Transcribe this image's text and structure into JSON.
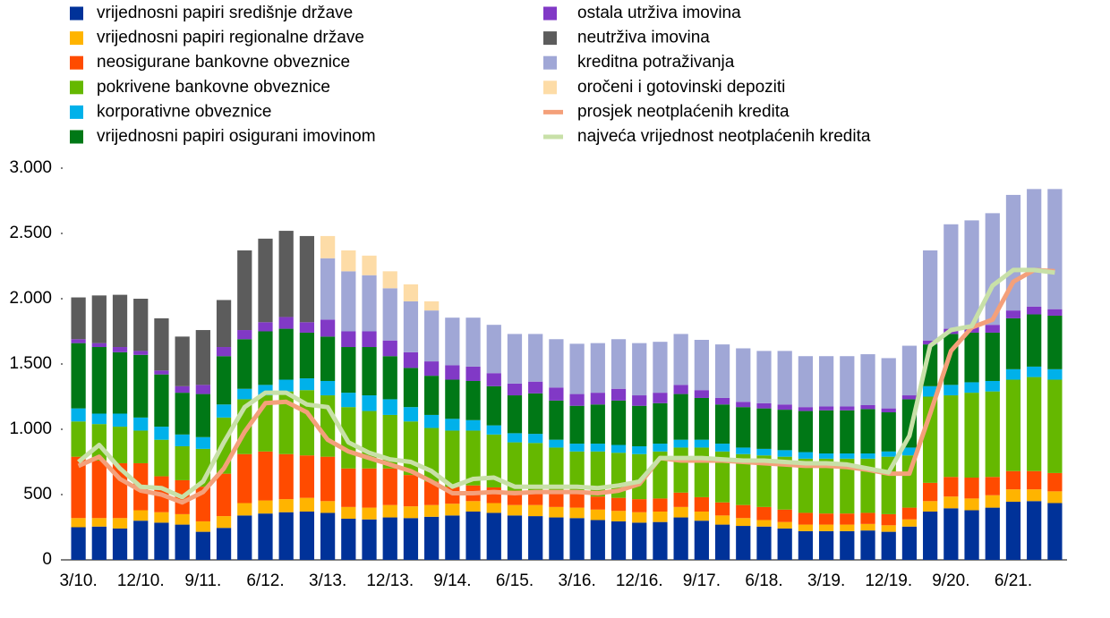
{
  "chart_data": {
    "type": "bar",
    "stacked": true,
    "categories": [
      "3/10.",
      null,
      null,
      "12/10.",
      null,
      null,
      "9/11.",
      null,
      null,
      "6/12.",
      null,
      null,
      "3/13.",
      null,
      null,
      "12/13.",
      null,
      null,
      "9/14.",
      null,
      null,
      "6/15.",
      null,
      null,
      "3/16.",
      null,
      null,
      "12/16.",
      null,
      null,
      "9/17.",
      null,
      null,
      "6/18.",
      null,
      null,
      "3/19.",
      null,
      null,
      "12/19.",
      null,
      null,
      "9/20.",
      null,
      null,
      "6/21.",
      null,
      null
    ],
    "ylim": [
      0,
      3000
    ],
    "yticks": [
      0,
      500,
      {
        "value": 1000,
        "label": "1.000"
      },
      {
        "value": 1500,
        "label": "1.500"
      },
      {
        "value": 2000,
        "label": "2.000"
      },
      {
        "value": 2500,
        "label": "2.500"
      },
      {
        "value": 3000,
        "label": "3.000"
      }
    ],
    "grid": false,
    "series": [
      {
        "name": "vrijednosni papiri središnje države",
        "color": "#003299",
        "values": [
          250,
          255,
          240,
          300,
          285,
          270,
          215,
          245,
          340,
          355,
          365,
          370,
          360,
          315,
          310,
          325,
          320,
          330,
          340,
          370,
          360,
          340,
          335,
          325,
          320,
          305,
          295,
          285,
          290,
          325,
          300,
          270,
          260,
          255,
          240,
          220,
          220,
          220,
          225,
          215,
          255,
          370,
          395,
          380,
          400,
          445,
          450,
          435
        ]
      },
      {
        "name": "vrijednosni papiri regionalne države",
        "color": "#ffb400",
        "values": [
          70,
          65,
          80,
          80,
          80,
          80,
          80,
          90,
          95,
          100,
          100,
          105,
          90,
          90,
          90,
          95,
          90,
          90,
          90,
          80,
          75,
          80,
          85,
          80,
          80,
          80,
          80,
          80,
          80,
          80,
          70,
          70,
          60,
          50,
          50,
          50,
          50,
          50,
          50,
          50,
          55,
          80,
          90,
          90,
          95,
          95,
          90,
          90
        ]
      },
      {
        "name": "neosigurane bankovne obveznice",
        "color": "#ff4b00",
        "values": [
          470,
          440,
          420,
          360,
          275,
          260,
          265,
          325,
          375,
          375,
          345,
          325,
          340,
          295,
          300,
          280,
          240,
          180,
          130,
          120,
          120,
          110,
          110,
          110,
          110,
          100,
          100,
          100,
          100,
          110,
          110,
          100,
          100,
          100,
          95,
          90,
          85,
          85,
          85,
          85,
          90,
          140,
          150,
          160,
          140,
          140,
          140,
          140
        ]
      },
      {
        "name": "pokrivene bankovne obveznice",
        "color": "#65b800",
        "values": [
          270,
          280,
          280,
          250,
          280,
          260,
          290,
          430,
          420,
          430,
          480,
          500,
          470,
          470,
          440,
          410,
          410,
          410,
          430,
          420,
          405,
          370,
          365,
          345,
          320,
          345,
          345,
          345,
          360,
          345,
          380,
          390,
          390,
          395,
          405,
          415,
          420,
          420,
          415,
          440,
          400,
          660,
          625,
          650,
          655,
          700,
          720,
          715
        ]
      },
      {
        "name": "korporativne obveznice",
        "color": "#00b1ea",
        "values": [
          100,
          80,
          100,
          100,
          100,
          90,
          90,
          100,
          80,
          80,
          90,
          90,
          110,
          110,
          120,
          120,
          110,
          100,
          90,
          80,
          70,
          70,
          70,
          60,
          60,
          60,
          60,
          60,
          60,
          60,
          60,
          60,
          50,
          50,
          50,
          50,
          40,
          40,
          40,
          40,
          60,
          80,
          80,
          80,
          80,
          80,
          80,
          80
        ]
      },
      {
        "name": "vrijednosni papiri osigurani imovinom",
        "color": "#007816",
        "values": [
          500,
          510,
          470,
          480,
          400,
          320,
          330,
          370,
          380,
          410,
          390,
          350,
          340,
          350,
          370,
          330,
          300,
          300,
          300,
          300,
          300,
          290,
          310,
          300,
          290,
          300,
          340,
          310,
          310,
          350,
          320,
          300,
          310,
          310,
          310,
          315,
          330,
          330,
          340,
          300,
          370,
          320,
          390,
          380,
          370,
          390,
          400,
          410
        ]
      },
      {
        "name": "ostala utrživa imovina",
        "color": "#8139c6",
        "values": [
          30,
          30,
          40,
          30,
          30,
          50,
          70,
          70,
          70,
          70,
          90,
          80,
          130,
          120,
          120,
          120,
          120,
          110,
          110,
          110,
          100,
          90,
          90,
          100,
          90,
          90,
          90,
          80,
          80,
          70,
          60,
          50,
          40,
          40,
          40,
          30,
          30,
          30,
          30,
          30,
          30,
          30,
          40,
          50,
          60,
          60,
          60,
          50
        ]
      },
      {
        "name": "neutrživa imovina",
        "color": "#5c5c5c",
        "values": [
          320,
          365,
          400,
          400,
          400,
          380,
          420,
          360,
          610,
          640,
          660,
          660,
          0,
          0,
          0,
          0,
          0,
          0,
          0,
          0,
          0,
          0,
          0,
          0,
          0,
          0,
          0,
          0,
          0,
          0,
          0,
          0,
          0,
          0,
          0,
          0,
          0,
          0,
          0,
          0,
          0,
          0,
          0,
          0,
          0,
          0,
          0,
          0
        ]
      },
      {
        "name": "kreditna potraživanja",
        "color": "#a0a7d6",
        "values": [
          0,
          0,
          0,
          0,
          0,
          0,
          0,
          0,
          0,
          0,
          0,
          0,
          470,
          460,
          430,
          400,
          390,
          390,
          365,
          375,
          370,
          380,
          365,
          370,
          385,
          380,
          380,
          400,
          390,
          390,
          385,
          410,
          410,
          400,
          410,
          390,
          385,
          385,
          390,
          385,
          380,
          690,
          800,
          810,
          855,
          885,
          900,
          920
        ]
      },
      {
        "name": "oročeni i gotovinski depoziti",
        "color": "#fddca7",
        "values": [
          0,
          0,
          0,
          0,
          0,
          0,
          0,
          0,
          0,
          0,
          0,
          0,
          170,
          160,
          150,
          130,
          130,
          70,
          0,
          0,
          0,
          0,
          0,
          0,
          0,
          0,
          0,
          0,
          0,
          0,
          0,
          0,
          0,
          0,
          0,
          0,
          0,
          0,
          0,
          0,
          0,
          0,
          0,
          0,
          0,
          0,
          0,
          0
        ]
      },
      {
        "name": "prosjek neotplaćenih kredita",
        "color": "#f4a07a",
        "type": "line",
        "values": [
          720,
          790,
          620,
          530,
          500,
          440,
          520,
          700,
          980,
          1200,
          1210,
          1130,
          920,
          830,
          780,
          730,
          680,
          600,
          510,
          510,
          520,
          510,
          520,
          520,
          520,
          510,
          530,
          580,
          780,
          760,
          760,
          760,
          750,
          740,
          730,
          720,
          720,
          710,
          690,
          660,
          660,
          1120,
          1600,
          1780,
          1840,
          2130,
          2220,
          2210
        ]
      },
      {
        "name": "najveća vrijednost neotplaćenih kredita",
        "color": "#c8e0a8",
        "type": "line",
        "values": [
          750,
          880,
          700,
          560,
          550,
          480,
          600,
          900,
          1170,
          1280,
          1280,
          1190,
          1170,
          900,
          820,
          770,
          750,
          680,
          560,
          620,
          630,
          560,
          560,
          560,
          560,
          550,
          570,
          600,
          780,
          780,
          780,
          770,
          760,
          760,
          750,
          740,
          740,
          730,
          700,
          670,
          950,
          1640,
          1760,
          1790,
          2100,
          2220,
          2220,
          2200
        ]
      }
    ]
  }
}
